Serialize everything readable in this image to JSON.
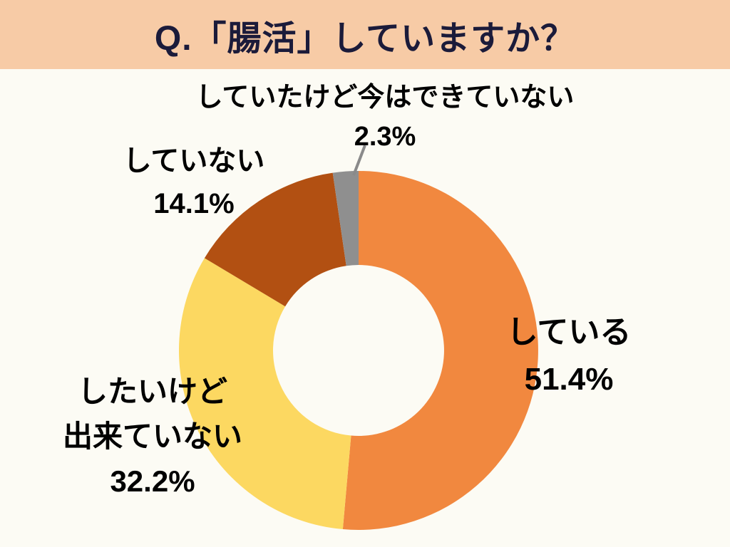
{
  "title": "Q.「腸活」していますか？",
  "banner_color": "#F7CBA6",
  "title_color": "#1B1B3A",
  "background_color": "#FCFBF4",
  "chart_data": {
    "type": "pie",
    "donut": true,
    "title": "Q.「腸活」していますか？",
    "start_angle_deg": 0,
    "direction": "clockwise",
    "unit": "%",
    "legend_position": "none",
    "segments": [
      {
        "id": "doing",
        "label": "している",
        "value": 51.4,
        "display": "51.4%",
        "color": "#F1883F"
      },
      {
        "id": "want-but-cant",
        "label": "したいけど出来ていない",
        "value": 32.2,
        "display": "32.2%",
        "color": "#FCD861"
      },
      {
        "id": "not-doing",
        "label": "していない",
        "value": 14.1,
        "display": "14.1%",
        "color": "#B25012"
      },
      {
        "id": "used-to",
        "label": "していたけど今はできていない",
        "value": 2.3,
        "display": "2.3%",
        "color": "#8F8F8F"
      }
    ]
  },
  "callouts": {
    "used_to": {
      "line1": "していたけど今はできていない",
      "line2": "2.3%"
    },
    "not_doing": {
      "line1": "していない",
      "line2": "14.1%"
    },
    "want_but_cant": {
      "line1": "したいけど",
      "line2": "出来ていない",
      "line3": "32.2%"
    },
    "doing": {
      "line1": "している",
      "line2": "51.4%"
    }
  }
}
